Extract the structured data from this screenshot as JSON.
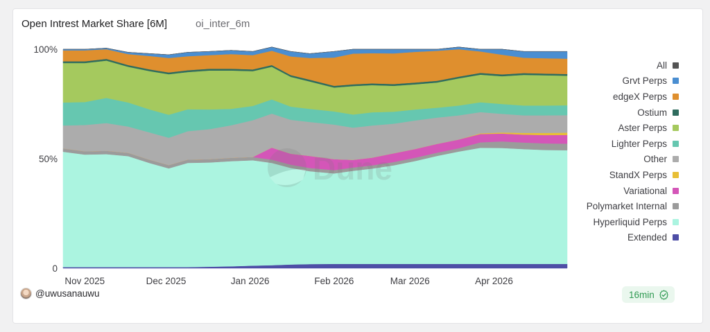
{
  "header": {
    "title": "Open Intrest Market Share [6M]",
    "query_name": "oi_inter_6m"
  },
  "footer": {
    "author": "@uwusanauwu",
    "refresh": "16min",
    "watermark": "Dune"
  },
  "icons": {
    "refresh_badge": "check-circle-icon",
    "watermark": "dune-logo-icon",
    "avatar": "avatar"
  },
  "chart_data": {
    "type": "area",
    "stacked": true,
    "normalized": true,
    "title": "Open Intrest Market Share [6M]",
    "xlabel": "",
    "ylabel": "",
    "ylim": [
      0,
      100
    ],
    "y_ticks": [
      {
        "value": 0,
        "label": "0"
      },
      {
        "value": 50,
        "label": "50%"
      },
      {
        "value": 100,
        "label": "100%"
      }
    ],
    "x_range": [
      "2025-10-24",
      "2026-04-28"
    ],
    "x_ticks": [
      {
        "date": "2025-11-01",
        "label": "Nov 2025"
      },
      {
        "date": "2025-12-01",
        "label": "Dec 2025"
      },
      {
        "date": "2026-01-01",
        "label": "Jan 2026"
      },
      {
        "date": "2026-02-01",
        "label": "Feb 2026"
      },
      {
        "date": "2026-03-01",
        "label": "Mar 2026"
      },
      {
        "date": "2026-04-01",
        "label": "Apr 2026"
      }
    ],
    "legend_position": "right",
    "grid": false,
    "x": [
      "2025-10-24",
      "2025-11-01",
      "2025-11-09",
      "2025-11-17",
      "2025-11-25",
      "2025-12-02",
      "2025-12-09",
      "2025-12-17",
      "2025-12-25",
      "2026-01-02",
      "2026-01-09",
      "2026-01-16",
      "2026-01-23",
      "2026-02-01",
      "2026-02-08",
      "2026-02-15",
      "2026-02-23",
      "2026-03-03",
      "2026-03-11",
      "2026-03-19",
      "2026-03-27",
      "2026-04-04",
      "2026-04-12",
      "2026-04-20",
      "2026-04-28"
    ],
    "series": [
      {
        "name": "Extended",
        "color": "#4e4ea6",
        "values": [
          0.5,
          0.5,
          0.5,
          0.5,
          0.5,
          0.5,
          0.5,
          0.7,
          0.9,
          1.2,
          1.4,
          1.7,
          1.9,
          2.0,
          2.0,
          2.0,
          2.0,
          2.0,
          2.0,
          2.0,
          2.0,
          2.0,
          2.0,
          2.0,
          2.0
        ]
      },
      {
        "name": "Hyperliquid Perps",
        "color": "#abf4e0",
        "values": [
          52.7,
          51.4,
          51.6,
          50.7,
          47.5,
          45.1,
          47.6,
          47.6,
          48.0,
          48.1,
          46.7,
          44.1,
          42.4,
          41.3,
          42.5,
          43.5,
          45.0,
          47.0,
          49.3,
          51.3,
          53.0,
          52.9,
          52.4,
          52.0,
          51.9
        ]
      },
      {
        "name": "Polymarket Internal",
        "color": "#9b9b9b",
        "values": [
          1.5,
          1.5,
          1.5,
          1.5,
          1.5,
          1.5,
          1.5,
          1.5,
          1.5,
          1.5,
          1.5,
          1.5,
          1.5,
          1.5,
          1.5,
          1.5,
          1.5,
          1.5,
          1.5,
          1.5,
          2.5,
          3.0,
          3.0,
          3.0,
          3.0
        ]
      },
      {
        "name": "Variational",
        "color": "#d456b8",
        "values": [
          0,
          0,
          0,
          0,
          0,
          0,
          0,
          0,
          0,
          0,
          5.5,
          5.0,
          5.5,
          5.0,
          3.5,
          3.5,
          4.0,
          4.0,
          4.0,
          4.0,
          3.8,
          3.6,
          3.6,
          3.8,
          4.0
        ]
      },
      {
        "name": "StandX Perps",
        "color": "#e8bf36",
        "values": [
          0,
          0,
          0,
          0,
          0,
          0,
          0,
          0,
          0,
          0,
          0,
          0,
          0,
          0,
          0,
          0,
          0,
          0,
          0,
          0,
          0.3,
          0.5,
          0.8,
          1.0,
          1.0
        ]
      },
      {
        "name": "Other",
        "color": "#acacac",
        "values": [
          10.5,
          12.0,
          12.7,
          12.0,
          12.5,
          12.5,
          13.0,
          13.7,
          14.9,
          16.8,
          15.5,
          15.5,
          15.5,
          15.8,
          14.7,
          14.7,
          13.5,
          13.0,
          12.0,
          11.0,
          9.7,
          8.5,
          8.0,
          8.0,
          8.0
        ]
      },
      {
        "name": "Lighter Perps",
        "color": "#66c7b0",
        "values": [
          10.5,
          10.5,
          11.5,
          11.0,
          10.5,
          10.5,
          10.0,
          9.0,
          7.5,
          6.5,
          6.5,
          6.0,
          6.0,
          6.0,
          6.0,
          6.0,
          5.5,
          5.0,
          4.5,
          4.5,
          4.5,
          4.5,
          4.5,
          4.5,
          4.5
        ]
      },
      {
        "name": "Aster Perps",
        "color": "#a5c95e",
        "values": [
          18.0,
          17.8,
          17.0,
          16.3,
          17.5,
          18.5,
          17.0,
          17.8,
          17.5,
          15.9,
          14.9,
          13.6,
          12.5,
          10.9,
          13.0,
          12.4,
          11.8,
          11.5,
          11.5,
          12.4,
          12.6,
          12.7,
          14.0,
          13.8,
          13.5
        ]
      },
      {
        "name": "Ostium",
        "color": "#2f6c5e",
        "values": [
          0.8,
          0.8,
          0.8,
          0.8,
          0.8,
          0.8,
          0.8,
          0.8,
          0.8,
          0.8,
          0.8,
          0.8,
          0.8,
          0.8,
          0.8,
          0.8,
          0.8,
          0.8,
          0.8,
          0.8,
          0.8,
          0.8,
          0.8,
          0.8,
          0.8
        ]
      },
      {
        "name": "edgeX Perps",
        "color": "#df8f2e",
        "values": [
          5.0,
          5.0,
          4.4,
          5.0,
          6.1,
          6.6,
          6.4,
          6.2,
          6.7,
          6.5,
          6.5,
          8.5,
          9.9,
          12.9,
          14.0,
          13.8,
          14.0,
          14.0,
          13.7,
          12.5,
          9.8,
          9.0,
          7.0,
          7.0,
          7.0
        ]
      },
      {
        "name": "Grvt Perps",
        "color": "#4a8ed1",
        "values": [
          0.5,
          0.5,
          0.5,
          0.8,
          1.1,
          1.5,
          1.8,
          1.7,
          1.7,
          1.7,
          1.7,
          2.3,
          2.0,
          2.8,
          2.0,
          1.8,
          1.9,
          1.2,
          0.7,
          1.0,
          1.0,
          2.5,
          2.9,
          3.1,
          3.3
        ]
      },
      {
        "name": "All",
        "color": "#545454",
        "values": [
          0,
          0,
          0,
          0,
          0,
          0,
          0,
          0,
          0,
          0,
          0,
          0,
          0,
          0,
          0,
          0,
          0,
          0,
          0,
          0,
          0,
          0,
          0,
          0,
          0
        ]
      }
    ],
    "legend": [
      {
        "name": "All",
        "color": "#545454"
      },
      {
        "name": "Grvt Perps",
        "color": "#4a8ed1"
      },
      {
        "name": "edgeX Perps",
        "color": "#df8f2e"
      },
      {
        "name": "Ostium",
        "color": "#2f6c5e"
      },
      {
        "name": "Aster Perps",
        "color": "#a5c95e"
      },
      {
        "name": "Lighter Perps",
        "color": "#66c7b0"
      },
      {
        "name": "Other",
        "color": "#acacac"
      },
      {
        "name": "StandX Perps",
        "color": "#e8bf36"
      },
      {
        "name": "Variational",
        "color": "#d456b8"
      },
      {
        "name": "Polymarket Internal",
        "color": "#9b9b9b"
      },
      {
        "name": "Hyperliquid Perps",
        "color": "#abf4e0"
      },
      {
        "name": "Extended",
        "color": "#4e4ea6"
      }
    ]
  }
}
